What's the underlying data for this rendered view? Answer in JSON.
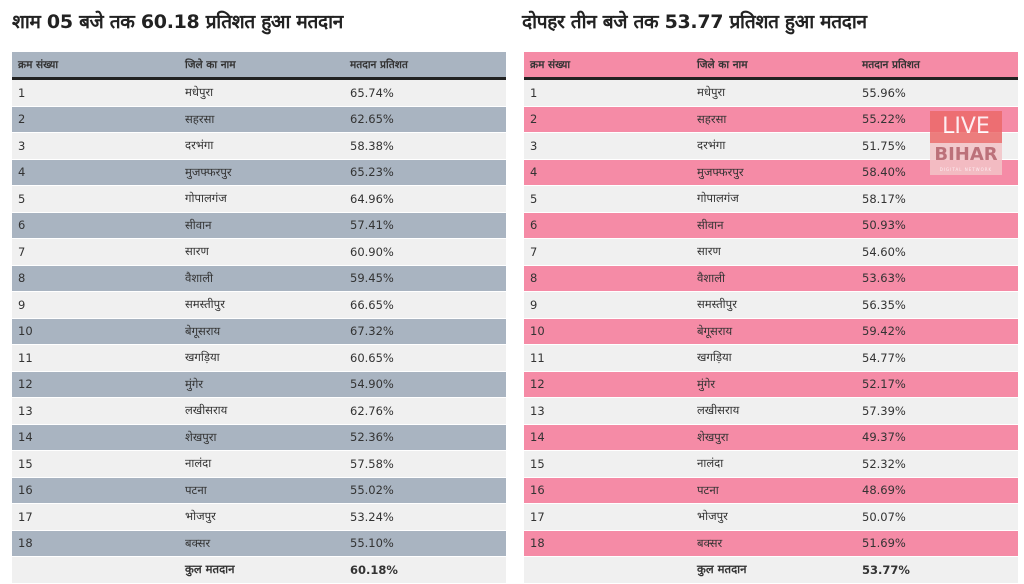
{
  "left": {
    "title": "शाम 05 बजे तक 60.18 प्रतिशत हुआ मतदान",
    "header_color": "#a9b4c1",
    "headers": [
      "क्रम संख्या",
      "जिले का नाम",
      "मतदान प्रतिशत"
    ],
    "rows": [
      [
        "1",
        "मधेपुरा",
        "65.74%"
      ],
      [
        "2",
        "सहरसा",
        "62.65%"
      ],
      [
        "3",
        "दरभंगा",
        "58.38%"
      ],
      [
        "4",
        "मुजफ्फरपुर",
        "65.23%"
      ],
      [
        "5",
        "गोपालगंज",
        "64.96%"
      ],
      [
        "6",
        "सीवान",
        "57.41%"
      ],
      [
        "7",
        "सारण",
        "60.90%"
      ],
      [
        "8",
        "वैशाली",
        "59.45%"
      ],
      [
        "9",
        "समस्तीपुर",
        "66.65%"
      ],
      [
        "10",
        "बेगूसराय",
        "67.32%"
      ],
      [
        "11",
        "खगड़िया",
        "60.65%"
      ],
      [
        "12",
        "मुंगेर",
        "54.90%"
      ],
      [
        "13",
        "लखीसराय",
        "62.76%"
      ],
      [
        "14",
        "शेखपुरा",
        "52.36%"
      ],
      [
        "15",
        "नालंदा",
        "57.58%"
      ],
      [
        "16",
        "पटना",
        "55.02%"
      ],
      [
        "17",
        "भोजपुर",
        "53.24%"
      ],
      [
        "18",
        "बक्सर",
        "55.10%"
      ]
    ],
    "total": [
      "",
      "कुल मतदान",
      "60.18%"
    ]
  },
  "right": {
    "title": "दोपहर तीन बजे तक 53.77 प्रतिशत हुआ मतदान",
    "header_color": "#f58ba6",
    "headers": [
      "क्रम संख्या",
      "जिले का नाम",
      "मतदान प्रतिशत"
    ],
    "rows": [
      [
        "1",
        "मधेपुरा",
        "55.96%"
      ],
      [
        "2",
        "सहरसा",
        "55.22%"
      ],
      [
        "3",
        "दरभंगा",
        "51.75%"
      ],
      [
        "4",
        "मुजफ्फरपुर",
        "58.40%"
      ],
      [
        "5",
        "गोपालगंज",
        "58.17%"
      ],
      [
        "6",
        "सीवान",
        "50.93%"
      ],
      [
        "7",
        "सारण",
        "54.60%"
      ],
      [
        "8",
        "वैशाली",
        "53.63%"
      ],
      [
        "9",
        "समस्तीपुर",
        "56.35%"
      ],
      [
        "10",
        "बेगूसराय",
        "59.42%"
      ],
      [
        "11",
        "खगड़िया",
        "54.77%"
      ],
      [
        "12",
        "मुंगेर",
        "52.17%"
      ],
      [
        "13",
        "लखीसराय",
        "57.39%"
      ],
      [
        "14",
        "शेखपुरा",
        "49.37%"
      ],
      [
        "15",
        "नालंदा",
        "52.32%"
      ],
      [
        "16",
        "पटना",
        "48.69%"
      ],
      [
        "17",
        "भोजपुर",
        "50.07%"
      ],
      [
        "18",
        "बक्सर",
        "51.69%"
      ]
    ],
    "total": [
      "",
      "कुल मतदान",
      "53.77%"
    ]
  },
  "logo": {
    "line1": "LIVE",
    "line2": "BIHAR",
    "line3": "DIGITAL NETWORK"
  }
}
